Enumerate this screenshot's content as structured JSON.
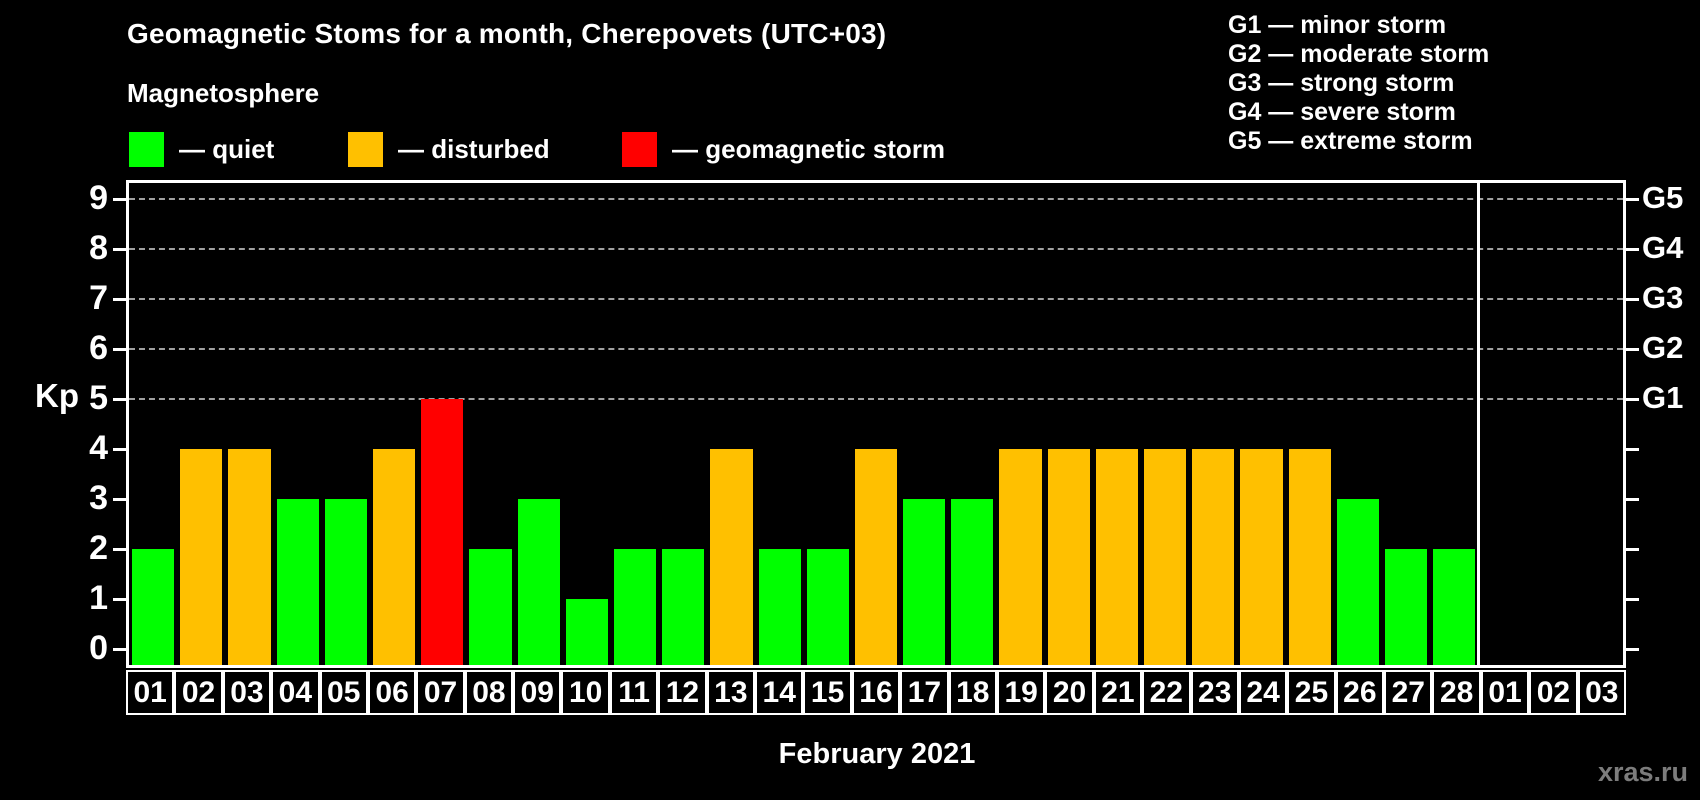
{
  "page": {
    "title": "Geomagnetic Stoms for a month, Cherepovets (UTC+03)",
    "subtitle": "Magnetosphere",
    "month_label": "February 2021",
    "watermark": "xras.ru",
    "background_color": "#000000"
  },
  "legend": {
    "items": [
      {
        "key": "quiet",
        "label": "— quiet",
        "color": "#00ff00"
      },
      {
        "key": "disturbed",
        "label": "— disturbed",
        "color": "#ffc000"
      },
      {
        "key": "storm",
        "label": "— geomagnetic storm",
        "color": "#ff0000"
      }
    ]
  },
  "storm_scale_legend": [
    "G1 — minor storm",
    "G2 — moderate storm",
    "G3 — strong storm",
    "G4 — severe storm",
    "G5 — extreme storm"
  ],
  "chart_data": {
    "type": "bar",
    "title": "Geomagnetic Stoms for a month, Cherepovets (UTC+03)",
    "xlabel": "February 2021",
    "ylabel": "Kp",
    "ylim": [
      0,
      9
    ],
    "y_ticks": [
      0,
      1,
      2,
      3,
      4,
      5,
      6,
      7,
      8,
      9
    ],
    "gridline_levels": [
      5,
      6,
      7,
      8,
      9
    ],
    "legend_position": "top",
    "grid": "dashed horizontal at Kp 5-9",
    "right_axis": [
      {
        "kp": 5,
        "label": "G1"
      },
      {
        "kp": 6,
        "label": "G2"
      },
      {
        "kp": 7,
        "label": "G3"
      },
      {
        "kp": 8,
        "label": "G4"
      },
      {
        "kp": 9,
        "label": "G5"
      }
    ],
    "colors": {
      "quiet": "#00ff00",
      "disturbed": "#ffc000",
      "storm": "#ff0000"
    },
    "month_split_after_index": 28,
    "bars": [
      {
        "day": "01",
        "kp": 2,
        "status": "quiet"
      },
      {
        "day": "02",
        "kp": 4,
        "status": "disturbed"
      },
      {
        "day": "03",
        "kp": 4,
        "status": "disturbed"
      },
      {
        "day": "04",
        "kp": 3,
        "status": "quiet"
      },
      {
        "day": "05",
        "kp": 3,
        "status": "quiet"
      },
      {
        "day": "06",
        "kp": 4,
        "status": "disturbed"
      },
      {
        "day": "07",
        "kp": 5,
        "status": "storm"
      },
      {
        "day": "08",
        "kp": 2,
        "status": "quiet"
      },
      {
        "day": "09",
        "kp": 3,
        "status": "quiet"
      },
      {
        "day": "10",
        "kp": 1,
        "status": "quiet"
      },
      {
        "day": "11",
        "kp": 2,
        "status": "quiet"
      },
      {
        "day": "12",
        "kp": 2,
        "status": "quiet"
      },
      {
        "day": "13",
        "kp": 4,
        "status": "disturbed"
      },
      {
        "day": "14",
        "kp": 2,
        "status": "quiet"
      },
      {
        "day": "15",
        "kp": 2,
        "status": "quiet"
      },
      {
        "day": "16",
        "kp": 4,
        "status": "disturbed"
      },
      {
        "day": "17",
        "kp": 3,
        "status": "quiet"
      },
      {
        "day": "18",
        "kp": 3,
        "status": "quiet"
      },
      {
        "day": "19",
        "kp": 4,
        "status": "disturbed"
      },
      {
        "day": "20",
        "kp": 4,
        "status": "disturbed"
      },
      {
        "day": "21",
        "kp": 4,
        "status": "disturbed"
      },
      {
        "day": "22",
        "kp": 4,
        "status": "disturbed"
      },
      {
        "day": "23",
        "kp": 4,
        "status": "disturbed"
      },
      {
        "day": "24",
        "kp": 4,
        "status": "disturbed"
      },
      {
        "day": "25",
        "kp": 4,
        "status": "disturbed"
      },
      {
        "day": "26",
        "kp": 3,
        "status": "quiet"
      },
      {
        "day": "27",
        "kp": 2,
        "status": "quiet"
      },
      {
        "day": "28",
        "kp": 2,
        "status": "quiet"
      },
      {
        "day": "01",
        "kp": null,
        "status": null
      },
      {
        "day": "02",
        "kp": null,
        "status": null
      },
      {
        "day": "03",
        "kp": null,
        "status": null
      }
    ]
  }
}
